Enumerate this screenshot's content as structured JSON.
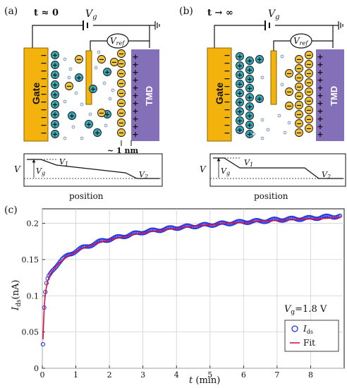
{
  "panel_a": {
    "label": "(a)",
    "time_label": "t ≈ 0",
    "vg_label": "V",
    "vg_sub": "g",
    "vref_label": "V",
    "vref_sub": "ref",
    "gate_label": "Gate",
    "tmd_label": "TMD",
    "distance_label": "~ 1 nm",
    "v_axis": "V",
    "vg_drop": "V",
    "vg_drop_sub": "g",
    "v1": "V",
    "v1_sub": "1",
    "v2": "V",
    "v2_sub": "2",
    "position_label": "position"
  },
  "panel_b": {
    "label": "(b)",
    "time_label": "t → ∞",
    "vg_label": "V",
    "vg_sub": "g",
    "vref_label": "V",
    "vref_sub": "ref",
    "gate_label": "Gate",
    "tmd_label": "TMD",
    "v_axis": "V",
    "vg_drop": "V",
    "vg_drop_sub": "g",
    "v1": "V",
    "v1_sub": "1",
    "v2": "V",
    "v2_sub": "2",
    "position_label": "position"
  },
  "panel_c": {
    "label": "(c)",
    "annotation_main": "V",
    "annotation_sub": "g",
    "annotation_rest": "=1.8 V"
  },
  "colors": {
    "gate": "#f3b30c",
    "tmd": "#8470b8",
    "cation": "#3aaab8",
    "anion": "#f3c43a",
    "data_points": "#2233dd",
    "fit": "#dd1144",
    "annotation": "#2233dd"
  },
  "chart_data": {
    "type": "scatter",
    "xlabel": "t (min)",
    "ylabel": "Ids(nA)",
    "xlim": [
      0,
      9
    ],
    "ylim": [
      0,
      0.22
    ],
    "xticks": [
      0,
      1,
      2,
      3,
      4,
      5,
      6,
      7,
      8
    ],
    "yticks": [
      0,
      0.05,
      0.1,
      0.15,
      0.2
    ],
    "ytick_labels": [
      "0",
      "0.05",
      "0.1",
      "0.15",
      "0.2"
    ],
    "grid": true,
    "legend_position": "bottom-right",
    "series": [
      {
        "name": "Ids",
        "marker": "open-circle",
        "x": [
          0.02,
          0.03,
          0.04,
          0.05,
          0.06,
          0.07,
          0.08,
          0.1,
          0.12,
          0.15,
          0.2,
          0.25,
          0.3,
          0.4,
          0.5,
          0.6,
          0.8,
          1.0,
          1.2,
          1.5,
          1.8,
          2.0,
          2.5,
          3.0,
          3.5,
          4.0,
          4.5,
          5.0,
          5.5,
          6.0,
          6.5,
          7.0,
          7.5,
          8.0,
          8.5,
          8.9
        ],
        "y": [
          0.033,
          0.05,
          0.065,
          0.078,
          0.088,
          0.095,
          0.1,
          0.108,
          0.115,
          0.121,
          0.127,
          0.131,
          0.135,
          0.141,
          0.146,
          0.15,
          0.157,
          0.162,
          0.166,
          0.171,
          0.176,
          0.178,
          0.183,
          0.188,
          0.191,
          0.194,
          0.196,
          0.198,
          0.2,
          0.202,
          0.203,
          0.205,
          0.206,
          0.207,
          0.209,
          0.21
        ]
      },
      {
        "name": "Fit",
        "marker": "line",
        "x": [
          0.02,
          0.04,
          0.06,
          0.08,
          0.1,
          0.15,
          0.2,
          0.3,
          0.4,
          0.5,
          0.7,
          1.0,
          1.3,
          1.6,
          2.0,
          2.5,
          3.0,
          3.5,
          4.0,
          4.5,
          5.0,
          5.5,
          6.0,
          6.5,
          7.0,
          7.5,
          8.0,
          8.5,
          8.9
        ],
        "y": [
          0.04,
          0.066,
          0.086,
          0.098,
          0.106,
          0.119,
          0.126,
          0.134,
          0.14,
          0.145,
          0.153,
          0.161,
          0.167,
          0.172,
          0.177,
          0.182,
          0.187,
          0.19,
          0.193,
          0.196,
          0.198,
          0.2,
          0.201,
          0.203,
          0.204,
          0.205,
          0.206,
          0.207,
          0.208
        ]
      }
    ]
  }
}
